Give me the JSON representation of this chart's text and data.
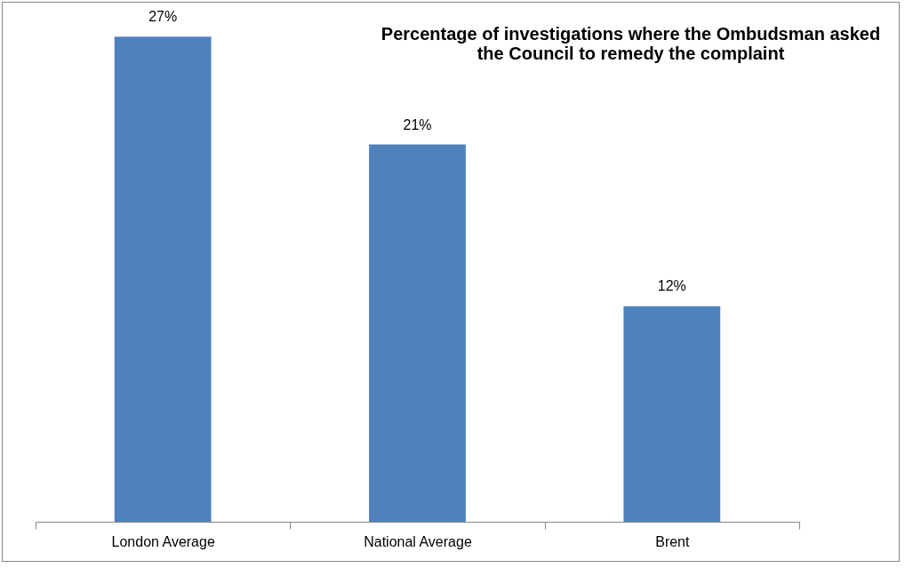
{
  "chart_data": {
    "type": "bar",
    "title": [
      "Percentage of investigations where the Ombudsman asked",
      "the Council to remedy the complaint"
    ],
    "categories": [
      "London Average",
      "National Average",
      "Brent"
    ],
    "values": [
      27,
      21,
      12
    ],
    "value_labels": [
      "27%",
      "21%",
      "12%"
    ],
    "color": "#4f81bd"
  }
}
